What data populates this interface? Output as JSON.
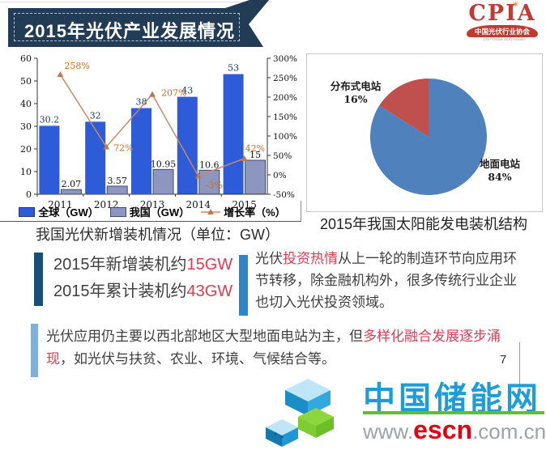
{
  "banner": {
    "title": "2015年光伏产业发展情况"
  },
  "logo": {
    "name": "CPIA",
    "sunburst_glyph": "✶",
    "org_cn": "中国光伏行业协会",
    "org_en": "China Photovoltaic Industry Association"
  },
  "chart_data": [
    {
      "type": "bar",
      "categories": [
        "2011",
        "2012",
        "2013",
        "2014",
        "2015"
      ],
      "series": [
        {
          "name": "全球（GW）",
          "type": "bar",
          "color": "#2e5bd7",
          "stroke": "#1f3864",
          "values": [
            30.2,
            32,
            38,
            43,
            53
          ]
        },
        {
          "name": "我国（GW）",
          "type": "bar",
          "color": "#8d96be",
          "stroke": "#3f4a78",
          "values": [
            2.07,
            3.57,
            10.95,
            10.6,
            15
          ]
        },
        {
          "name": "增长率（%）",
          "type": "line",
          "color": "#c98a62",
          "label_color": "#cf6a1e",
          "unit": "%",
          "values": [
            258,
            72,
            207,
            -3,
            42
          ]
        }
      ],
      "left_axis": {
        "min": 0,
        "max": 60,
        "step": 10
      },
      "right_axis": {
        "min": -50,
        "max": 300,
        "step": 50,
        "suffix": "%"
      },
      "grid": false,
      "legend_position": "bottom",
      "caption": "我国光伏新增装机情况（单位：GW）"
    },
    {
      "type": "pie",
      "slices": [
        {
          "label": "地面电站",
          "pct": 84,
          "color": "#4f81bd",
          "label_xy": [
            238,
            140
          ]
        },
        {
          "label": "分布式电站",
          "pct": 16,
          "color": "#c0504d",
          "label_xy": [
            60,
            44
          ]
        }
      ],
      "caption": "2015年我国太阳能发电装机结构"
    }
  ],
  "callouts": {
    "left": {
      "accent_color": "#174f75",
      "lines": [
        [
          {
            "text": "2015年新增装机约"
          },
          {
            "text": "15GW",
            "red": true
          }
        ],
        [
          {
            "text": "2015年累计装机约"
          },
          {
            "text": "43GW",
            "red": true
          }
        ]
      ]
    },
    "right": {
      "accent_color": "#2e86c8",
      "lines": [
        [
          {
            "text": "光伏"
          },
          {
            "text": "投资热情",
            "red": true
          },
          {
            "text": "从上一轮的制造环节向应用环节转移，除金融机构外，很多传统行业企业也切入光伏投资领域。"
          }
        ]
      ]
    },
    "bottom": {
      "accent_color": "#7fb0d8",
      "lines": [
        [
          {
            "text": "光伏应用仍主要以西北部地区大型地面电站为主，但"
          },
          {
            "text": "多样化融合发展逐步涌现",
            "red": true
          },
          {
            "text": "，如光伏与扶贫、农业、环境、气候结合等。"
          }
        ]
      ]
    }
  },
  "page_number": "7",
  "watermark": {
    "site_name": "中国储能网",
    "brand_blue": "#1e9cd8",
    "accent_green": "#5ebf30",
    "domain_red": "#e60012",
    "url": {
      "prefix": "www.",
      "domain": "escn",
      "suffix": ".com.cn"
    }
  }
}
